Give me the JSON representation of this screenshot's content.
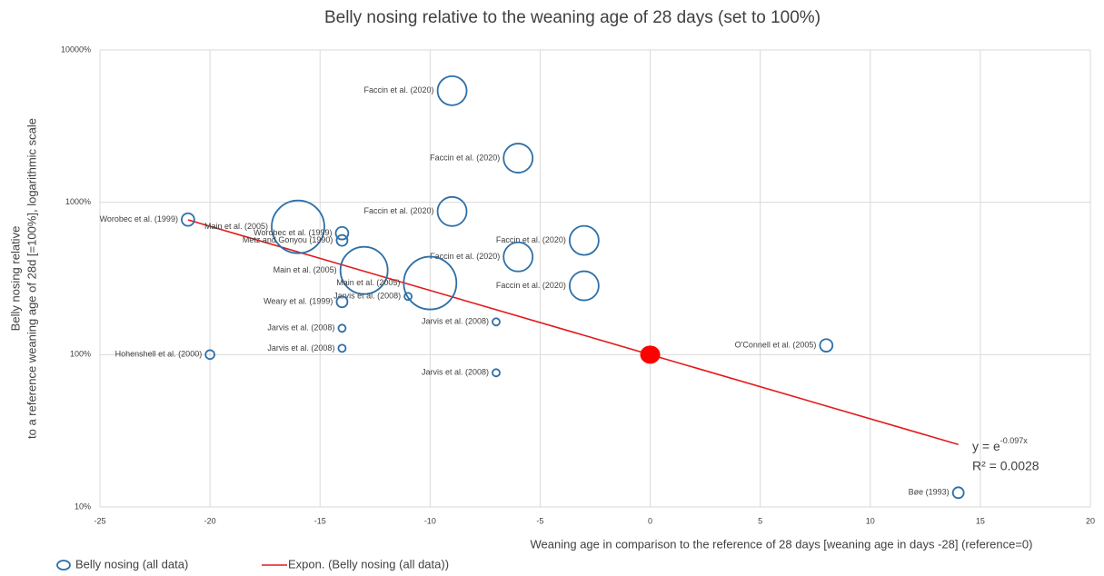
{
  "chart_data": {
    "type": "bubble",
    "title": "Belly nosing relative to the weaning age of 28 days (set to 100%)",
    "x_label": "Weaning age in comparison to the reference of 28 days [weaning age in days -28] (reference=0)",
    "y_label": [
      "Belly nosing relative",
      "to a reference weaning age of 28d [=100%], logarithmic scale"
    ],
    "log_y": true,
    "grid": true,
    "legend": "bottom",
    "xlim": [
      -25,
      20
    ],
    "xticks": [
      -25,
      -20,
      -15,
      -10,
      -5,
      0,
      5,
      10,
      15,
      20
    ],
    "ylim": [
      10,
      10000
    ],
    "yticks": [
      {
        "value": 10,
        "label": "10%"
      },
      {
        "value": 100,
        "label": "100%"
      },
      {
        "value": 1000,
        "label": "1000%"
      },
      {
        "value": 10000,
        "label": "10000%"
      }
    ],
    "series": [
      {
        "name": "Belly nosing (all data)",
        "color": "#2e6fa8",
        "x": [
          -9,
          -6,
          -9,
          -21,
          -16,
          -14,
          -14,
          -3,
          -6,
          -13,
          -10,
          -3,
          -11,
          -14,
          -7,
          -14,
          -14,
          -20,
          8,
          -7,
          14
        ],
        "values": [
          5400,
          1950,
          870,
          770,
          690,
          627,
          562,
          562,
          438,
          357,
          295,
          283,
          241,
          222,
          164,
          149,
          110,
          100,
          115,
          76,
          12.4
        ],
        "sizes": [
          64,
          64,
          64,
          12,
          210,
          12,
          9,
          64,
          64,
          169,
          210,
          64,
          4,
          9,
          4,
          4,
          4,
          6,
          12,
          4,
          9
        ],
        "labels": [
          "Faccin et al. (2020)",
          "Faccin et al. (2020)",
          "Faccin et al. (2020)",
          "Worobec et al. (1999)",
          "Main et al. (2005)",
          "Worobec et al. (1999)",
          "Metz and Gonyou (1990)",
          "Faccin et al. (2020)",
          "Faccin et al. (2020)",
          "Main et al. (2005)",
          "Main et al. (2005)",
          "Faccin et al. (2020)",
          "Jarvis et al. (2008)",
          "Weary et al. (1999)",
          "Jarvis et al. (2008)",
          "Jarvis et al. (2008)",
          "Jarvis et al. (2008)",
          "Hohenshell et al. (2000)",
          "O'Connell et al. (2005)",
          "Jarvis et al. (2008)",
          "Bøe (1993)"
        ]
      }
    ],
    "reference_point": {
      "x": 0,
      "y": 100,
      "color": "#ff0000"
    },
    "trendline": {
      "name": "Expon. (Belly nosing (all data))",
      "color": "#e31a1c",
      "base": 100,
      "coefficient": -0.097,
      "x_range": [
        -21,
        14
      ],
      "equation": "y = e",
      "equation_exponent": "-0.097x",
      "r2": "R² = 0.0028"
    }
  }
}
